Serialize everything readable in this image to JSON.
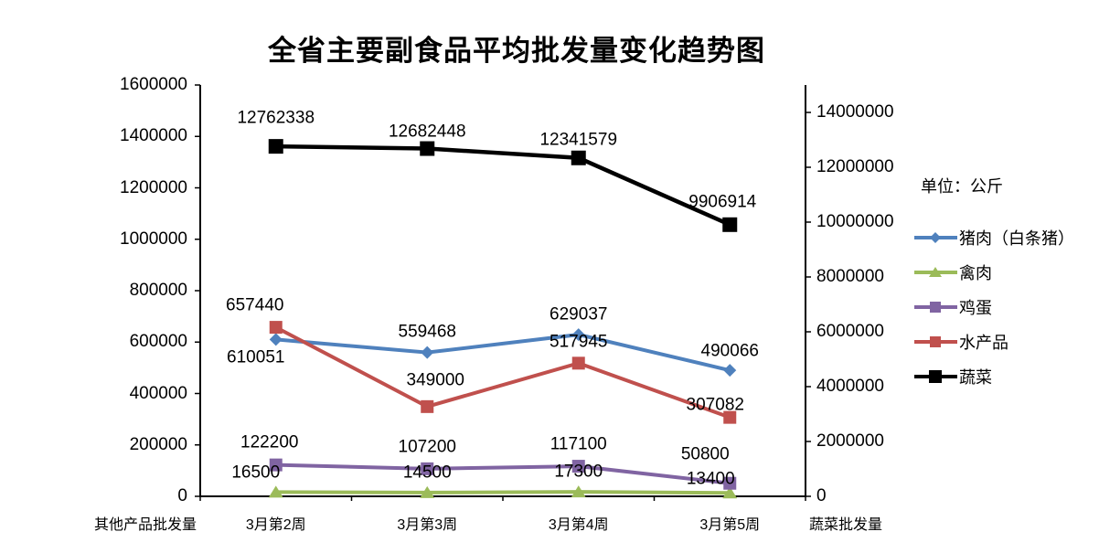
{
  "unit_label": "单位：公斤",
  "chart_data": {
    "type": "line",
    "title": "全省主要副食品平均批发量变化趋势图",
    "categories": [
      "3月第2周",
      "3月第3周",
      "3月第4周",
      "3月第5周"
    ],
    "series": [
      {
        "name": "猪肉（白条猪）",
        "axis": "left",
        "color": "#4F81BD",
        "marker": "diamond",
        "values": [
          610051,
          559468,
          629037,
          490066
        ]
      },
      {
        "name": "禽肉",
        "axis": "left",
        "color": "#9BBB59",
        "marker": "triangle",
        "values": [
          16500,
          14500,
          17300,
          13400
        ]
      },
      {
        "name": "鸡蛋",
        "axis": "left",
        "color": "#8064A2",
        "marker": "square",
        "values": [
          122200,
          107200,
          117100,
          50800
        ]
      },
      {
        "name": "水产品",
        "axis": "left",
        "color": "#C0504D",
        "marker": "square",
        "values": [
          657440,
          349000,
          517945,
          307082
        ]
      },
      {
        "name": "蔬菜",
        "axis": "right",
        "color": "#000000",
        "marker": "square",
        "values": [
          12762338,
          12682448,
          12341579,
          9906914
        ]
      }
    ],
    "left_axis": {
      "label": "其他产品批发量",
      "ticks": [
        0,
        200000,
        400000,
        600000,
        800000,
        1000000,
        1200000,
        1400000,
        1600000
      ]
    },
    "right_axis": {
      "label": "蔬菜批发量",
      "ticks": [
        0,
        2000000,
        4000000,
        6000000,
        8000000,
        10000000,
        12000000,
        14000000
      ]
    },
    "legend_position": "right",
    "grid": "off"
  }
}
